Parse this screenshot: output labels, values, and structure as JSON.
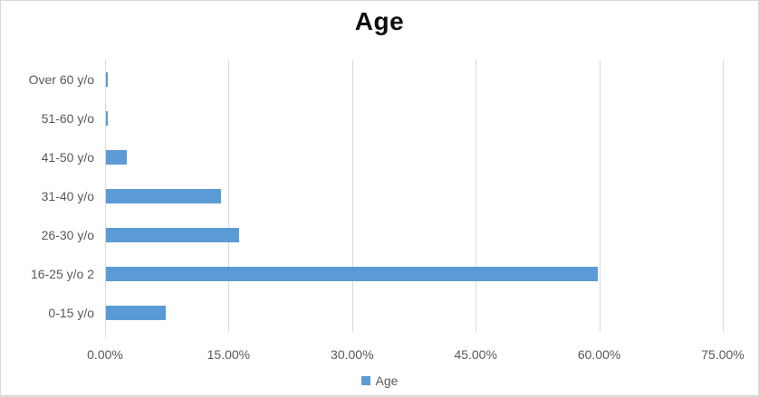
{
  "chart": {
    "title": "Age",
    "legend": {
      "label": "Age"
    },
    "colors": {
      "bar": "#5b9bd5",
      "gridline": "#d9d9d9",
      "axis_text": "#595959",
      "title_text": "#0d0d0d",
      "border": "#d9d9d9",
      "background": "#ffffff"
    }
  },
  "chart_data": {
    "type": "bar",
    "orientation": "horizontal",
    "title": "Age",
    "categories": [
      "0-15 y/o",
      "16-25 y/o 2",
      "26-30 y/o",
      "31-40 y/o",
      "41-50 y/o",
      "51-60 y/o",
      "Over 60 y/o"
    ],
    "values": [
      7.21,
      59.7,
      16.17,
      13.93,
      2.49,
      0.25,
      0.25
    ],
    "category_order_note": "first category plotted at bottom, last at top",
    "value_unit": "percent",
    "x_ticks": [
      "0.00%",
      "15.00%",
      "30.00%",
      "45.00%",
      "60.00%",
      "75.00%"
    ],
    "x_tick_values": [
      0,
      15,
      30,
      45,
      60,
      75
    ],
    "xlim": [
      0,
      75
    ],
    "xlabel": "",
    "ylabel": "",
    "grid": "vertical-only",
    "legend_entries": [
      "Age"
    ],
    "legend_position": "bottom"
  }
}
